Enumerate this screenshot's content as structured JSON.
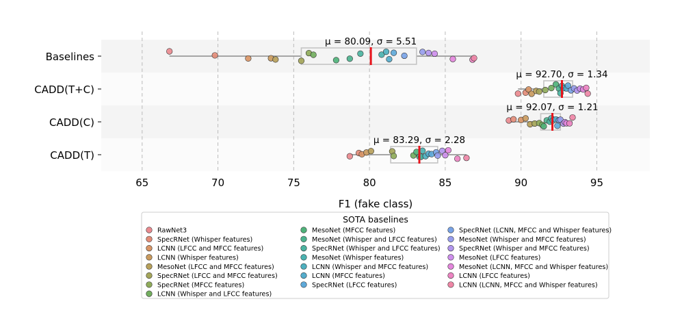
{
  "chart_data": {
    "type": "boxplot-strip",
    "title": "",
    "xlabel": "F1 (fake class)",
    "ylabel": "",
    "xlim": [
      62.3,
      98.5
    ],
    "xticks": [
      65,
      70,
      75,
      80,
      85,
      90,
      95
    ],
    "xtick_labels": [
      "65",
      "70",
      "75",
      "80",
      "85",
      "90",
      "95"
    ],
    "grid": "vertical dashed at x ticks",
    "categories": [
      "Baselines",
      "CADD(T+C)",
      "CADD(C)",
      "CADD(T)"
    ],
    "groups": [
      {
        "label": "Baselines",
        "annotation": "μ = 80.09, σ = 5.51",
        "mean": 80.09,
        "box": {
          "whislo": 66.8,
          "q1": 75.5,
          "med": 80.1,
          "q3": 83.1,
          "whishi": 86.9
        },
        "points": [
          66.8,
          69.8,
          72.0,
          73.5,
          73.8,
          75.5,
          76.0,
          76.3,
          77.8,
          78.7,
          79.4,
          80.8,
          81.1,
          81.3,
          81.6,
          82.3,
          83.5,
          83.9,
          84.3,
          85.5,
          86.8,
          86.9
        ]
      },
      {
        "label": "CADD(T+C)",
        "annotation": "μ = 92.70, σ = 1.34",
        "mean": 92.7,
        "box": {
          "whislo": 89.8,
          "q1": 91.5,
          "med": 92.7,
          "q3": 93.4,
          "whishi": 94.4
        },
        "points": [
          89.8,
          90.3,
          90.5,
          90.7,
          91.0,
          91.2,
          91.6,
          92.0,
          92.3,
          92.5,
          92.6,
          92.7,
          92.8,
          93.0,
          93.1,
          93.3,
          93.5,
          93.7,
          93.9,
          94.1,
          94.3,
          94.4
        ]
      },
      {
        "label": "CADD(C)",
        "annotation": "μ = 92.07, σ = 1.21",
        "mean": 92.07,
        "box": {
          "whislo": 89.2,
          "q1": 91.3,
          "med": 92.0,
          "q3": 92.6,
          "whishi": 93.4
        },
        "points": [
          89.2,
          89.5,
          90.0,
          90.3,
          90.6,
          90.9,
          91.2,
          91.4,
          91.5,
          91.7,
          91.9,
          92.0,
          92.1,
          92.3,
          92.4,
          92.5,
          92.6,
          92.8,
          92.9,
          93.0,
          93.2,
          93.4
        ]
      },
      {
        "label": "CADD(T)",
        "annotation": "μ = 83.29, σ = 2.28",
        "mean": 83.29,
        "box": {
          "whislo": 78.7,
          "q1": 81.4,
          "med": 83.3,
          "q3": 84.5,
          "whishi": 86.4
        },
        "points": [
          78.7,
          79.3,
          79.5,
          79.8,
          80.1,
          81.5,
          81.6,
          82.9,
          83.1,
          83.3,
          83.4,
          83.5,
          83.7,
          83.9,
          84.1,
          84.4,
          84.5,
          84.8,
          85.0,
          85.2,
          85.8,
          86.4
        ]
      }
    ],
    "legend": {
      "title": "SOTA baselines",
      "placement": "bottom-center",
      "columns": 3,
      "entries": [
        {
          "label": "RawNet3",
          "color": "#ea8a8f"
        },
        {
          "label": "SpecRNet (Whisper features)",
          "color": "#e38c78"
        },
        {
          "label": "LCNN (LFCC and MFCC features)",
          "color": "#d99566"
        },
        {
          "label": "LCNN (Whisper features)",
          "color": "#c99a5e"
        },
        {
          "label": "MesoNet (LFCC and MFCC features)",
          "color": "#b7a05a"
        },
        {
          "label": "SpecRNet (LFCC and MFCC features)",
          "color": "#a5a65a"
        },
        {
          "label": "SpecRNet (MFCC features)",
          "color": "#8fab5a"
        },
        {
          "label": "LCNN (Whisper and LFCC features)",
          "color": "#72ae5e"
        },
        {
          "label": "MesoNet (MFCC features)",
          "color": "#4fb27a"
        },
        {
          "label": "MesoNet (Whisper and LFCC features)",
          "color": "#4db38e"
        },
        {
          "label": "SpecRNet (Whisper and LFCC features)",
          "color": "#4bb3a0"
        },
        {
          "label": "MesoNet (Whisper features)",
          "color": "#4bb2b0"
        },
        {
          "label": "LCNN (Whisper and MFCC features)",
          "color": "#4eb0bf"
        },
        {
          "label": "LCNN (MFCC features)",
          "color": "#55adcc"
        },
        {
          "label": "SpecRNet (LFCC features)",
          "color": "#5ea9d9"
        },
        {
          "label": "SpecRNet (LCNN, MFCC and Whisper features)",
          "color": "#78a3e6"
        },
        {
          "label": "MesoNet (Whisper and MFCC features)",
          "color": "#979ded"
        },
        {
          "label": "SpecRNet (Whisper and MFCC features)",
          "color": "#b296ee"
        },
        {
          "label": "MesoNet (LFCC features)",
          "color": "#cd8eec"
        },
        {
          "label": "MesoNet (LCNN, MFCC and Whisper features)",
          "color": "#e386dc"
        },
        {
          "label": "LCNN (LFCC features)",
          "color": "#ec84c2"
        },
        {
          "label": "LCNN (LCNN, MFCC and Whisper features)",
          "color": "#ee86a6"
        }
      ]
    }
  }
}
